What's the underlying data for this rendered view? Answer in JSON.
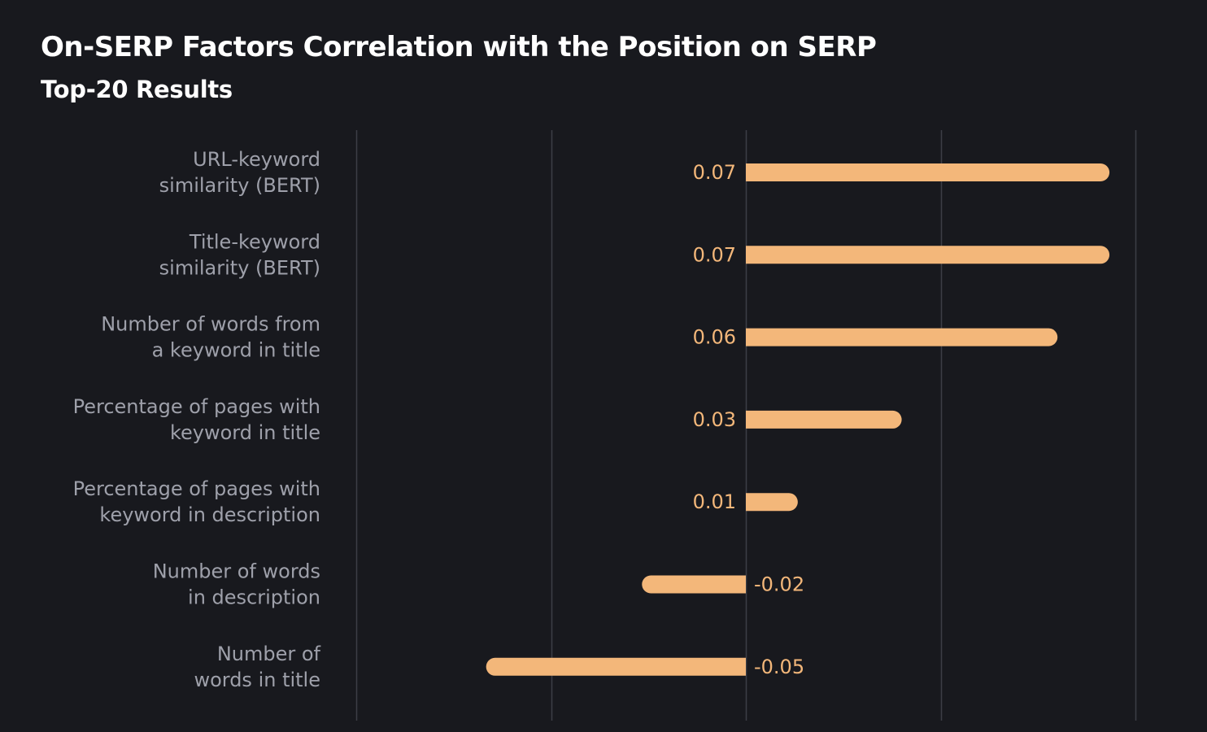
{
  "chart_data": {
    "type": "bar",
    "orientation": "horizontal",
    "title": "On-SERP Factors Correlation with the Position on SERP",
    "subtitle": "Top-20 Results",
    "categories": [
      [
        "URL-keyword",
        "similarity (BERT)"
      ],
      [
        "Title-keyword",
        "similarity (BERT)"
      ],
      [
        "Number of words from",
        "a keyword in title"
      ],
      [
        "Percentage of pages with",
        "keyword in title"
      ],
      [
        "Percentage of pages with",
        "keyword in description"
      ],
      [
        "Number of words",
        "in description"
      ],
      [
        "Number of",
        "words in title"
      ]
    ],
    "values": [
      0.07,
      0.07,
      0.06,
      0.03,
      0.01,
      -0.02,
      -0.05
    ],
    "value_labels": [
      "0.07",
      "0.07",
      "0.06",
      "0.03",
      "0.01",
      "-0.02",
      "-0.05"
    ],
    "xlim": [
      -0.075,
      0.075
    ],
    "gridlines": [
      -0.075,
      -0.0375,
      0,
      0.0375,
      0.075
    ],
    "grid": true,
    "legend": "none",
    "colors": {
      "background": "#18191e",
      "bar": "#f3b77a",
      "value_label": "#f3b77a",
      "category_label": "#9ea0aa",
      "gridline": "#3c3e46",
      "title": "#ffffff"
    }
  }
}
